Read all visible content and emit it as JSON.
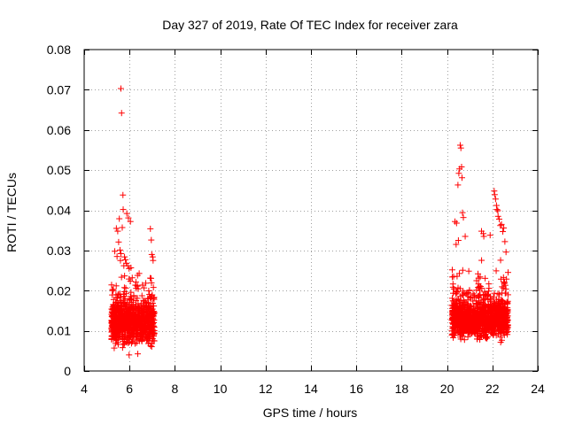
{
  "chart_data": {
    "type": "scatter",
    "title": "Day 327 of 2019, Rate Of TEC Index for receiver zara",
    "xlabel": "GPS time / hours",
    "ylabel": "ROTI / TECUs",
    "xlim": [
      4,
      24
    ],
    "ylim": [
      0,
      0.08
    ],
    "xticks": [
      4,
      6,
      8,
      10,
      12,
      14,
      16,
      18,
      20,
      22,
      24
    ],
    "xtick_labels": [
      "4",
      "6",
      "8",
      "10",
      "12",
      "14",
      "16",
      "18",
      "20",
      "22",
      "24"
    ],
    "yticks": [
      0,
      0.01,
      0.02,
      0.03,
      0.04,
      0.05,
      0.06,
      0.07,
      0.08
    ],
    "ytick_labels": [
      "0",
      "0.01",
      "0.02",
      "0.03",
      "0.04",
      "0.05",
      "0.06",
      "0.07",
      "0.08"
    ],
    "grid": true,
    "marker": "+",
    "marker_color": "#ff0000",
    "series": [
      {
        "name": "ROTI",
        "clusters": [
          {
            "time_range": [
              5.2,
              7.1
            ],
            "typical_range": [
              0.004,
              0.02
            ]
          },
          {
            "time_range": [
              20.2,
              22.7
            ],
            "typical_range": [
              0.006,
              0.02
            ]
          }
        ],
        "x": [
          5.62,
          5.65,
          5.71,
          5.55,
          5.72,
          5.68,
          5.88,
          5.95,
          6.04,
          5.42,
          5.48,
          5.52,
          5.58,
          5.62,
          5.78,
          5.82,
          5.86,
          5.92,
          5.98,
          6.12,
          6.35,
          6.92,
          6.96,
          6.98,
          7.02,
          7.04,
          5.35,
          5.45,
          5.6,
          5.75,
          20.58,
          20.61,
          20.64,
          20.55,
          20.52,
          20.66,
          20.48,
          20.35,
          20.42,
          20.68,
          20.72,
          20.8,
          20.5,
          20.4,
          21.52,
          21.6,
          21.62,
          21.9,
          22.08,
          22.1,
          22.14,
          22.18,
          22.2,
          22.24,
          22.3,
          22.4,
          22.46,
          22.5,
          22.55,
          22.6,
          22.25,
          22.35
        ],
        "y": [
          0.0703,
          0.0642,
          0.0438,
          0.0379,
          0.0402,
          0.0357,
          0.0392,
          0.0381,
          0.0372,
          0.0355,
          0.0348,
          0.0321,
          0.0301,
          0.0292,
          0.0284,
          0.0277,
          0.0268,
          0.0262,
          0.0255,
          0.0232,
          0.0212,
          0.0354,
          0.0326,
          0.029,
          0.0284,
          0.0275,
          0.0298,
          0.0285,
          0.0275,
          0.0262,
          0.0562,
          0.0555,
          0.0508,
          0.0503,
          0.0492,
          0.0481,
          0.0463,
          0.0372,
          0.0368,
          0.0394,
          0.0382,
          0.0335,
          0.0325,
          0.0315,
          0.0348,
          0.0342,
          0.0335,
          0.0338,
          0.0448,
          0.0439,
          0.0428,
          0.0412,
          0.0402,
          0.0399,
          0.0378,
          0.0365,
          0.0347,
          0.0356,
          0.0322,
          0.0296,
          0.0385,
          0.0362
        ]
      }
    ]
  }
}
